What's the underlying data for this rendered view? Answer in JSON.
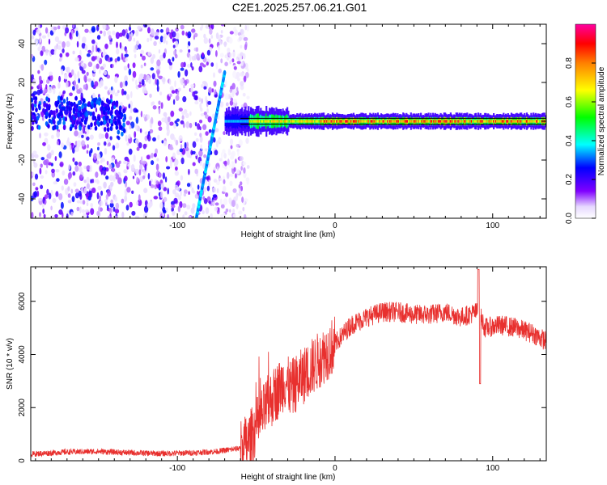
{
  "title": "C2E1.2025.257.06.21.G01",
  "colors": {
    "snr_line": "#e8302e",
    "axis": "#000000"
  },
  "chart_data": [
    {
      "type": "heatmap",
      "panel": "spectrogram",
      "xlabel": "Height of straight line (km)",
      "ylabel": "Frequency (Hz)",
      "xlim": [
        -193,
        134
      ],
      "ylim": [
        -50,
        50
      ],
      "xticks": [
        -100,
        0,
        100
      ],
      "yticks": [
        -40,
        -20,
        0,
        20,
        40
      ],
      "colorbar": {
        "label": "Normalized spectral amplitude",
        "range": [
          0,
          1
        ],
        "ticks": [
          0.0,
          0.2,
          0.4,
          0.6,
          0.8
        ],
        "colormap": "rainbow (white→purple→blue→cyan→green→yellow→red→magenta)"
      },
      "features": {
        "noise_region_x": [
          -193,
          -55
        ],
        "chirp_line": {
          "x": [
            -88,
            -70
          ],
          "y": [
            -50,
            25
          ],
          "amplitude": 0.3
        },
        "signal_band": {
          "x": [
            -70,
            134
          ],
          "y_center": 0,
          "peak_amplitude": 0.95
        }
      }
    },
    {
      "type": "line",
      "panel": "snr",
      "xlabel": "Height of straight line (km)",
      "ylabel": "SNR (10 * v/v)",
      "xlim": [
        -193,
        134
      ],
      "ylim": [
        0,
        7300
      ],
      "xticks": [
        -100,
        0,
        100
      ],
      "yticks": [
        0,
        2000,
        4000,
        6000
      ],
      "series": [
        {
          "x": [
            -193,
            -170,
            -150,
            -130,
            -110,
            -90,
            -75,
            -62,
            -55,
            -48,
            -42,
            -38,
            -32,
            -28,
            -20,
            -10,
            0,
            10,
            20,
            30,
            40,
            50,
            60,
            70,
            80,
            85,
            90,
            92,
            95,
            105,
            115,
            125,
            134
          ],
          "y": [
            250,
            330,
            350,
            300,
            270,
            300,
            350,
            450,
            700,
            1500,
            2200,
            2500,
            3000,
            2700,
            3200,
            3800,
            4400,
            5100,
            5400,
            5600,
            5600,
            5500,
            5500,
            5600,
            5400,
            5500,
            5600,
            5500,
            5000,
            5100,
            5000,
            4800,
            4500
          ]
        }
      ]
    }
  ]
}
